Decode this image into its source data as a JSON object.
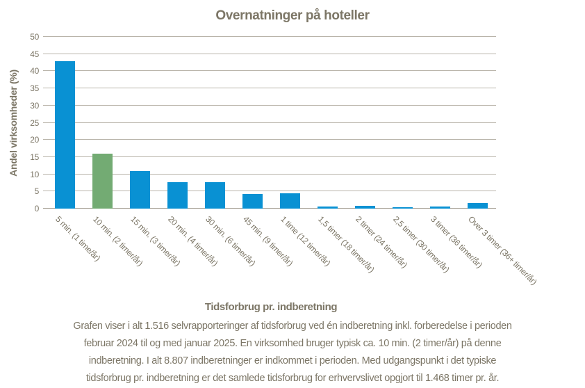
{
  "colors": {
    "bar_blue": "#0991d3",
    "bar_green": "#73ab73",
    "text": "#7c7666",
    "gridline": "#b9b4aa",
    "axis_line": "#9e988c"
  },
  "chart_data": {
    "type": "bar",
    "title": "Overnatninger på hoteller",
    "xlabel": "Tidsforbrug pr. indberetning",
    "ylabel": "Andel virksomheder (%)",
    "ylim": [
      0,
      50
    ],
    "yticks": [
      0,
      5,
      10,
      15,
      20,
      25,
      30,
      35,
      40,
      45,
      50
    ],
    "grid": true,
    "legend": "none",
    "categories": [
      "5 min. (1 time/år)",
      "10 min. (2 timer/år)",
      "15 min. (3 timer/år)",
      "20 min. (4 timer/år)",
      "30 min. (6 timer/år)",
      "45 min. (9 timer/år)",
      "1 time (12 timer/år)",
      "1,5 timer (18 timer/år)",
      "2 timer (24 timer/år)",
      "2,5 timer (30 timer/år)",
      "3 timer (36 timer/år)",
      "Over 3 timer (36+ timer/år)"
    ],
    "values": [
      43,
      16,
      11,
      7.7,
      7.6,
      4.3,
      4.5,
      0.6,
      0.9,
      0.4,
      0.6,
      1.6
    ],
    "highlight_index": 1,
    "highlight_note": "typical value bar shown in green"
  },
  "caption": {
    "lines": [
      "Grafen viser i alt 1.516 selvrapporteringer af tidsforbrug ved én indberetning inkl. forberedelse i perioden",
      "februar 2024 til og med januar 2025. En virksomhed bruger typisk ca. 10 min. (2 timer/år) på denne",
      "indberetning. I alt 8.807 indberetninger er indkommet i perioden. Med udgangspunkt i det typiske",
      "tidsforbrug pr. indberetning er det samlede tidsforbrug for erhvervslivet opgjort til 1.468 timer pr. år."
    ]
  }
}
